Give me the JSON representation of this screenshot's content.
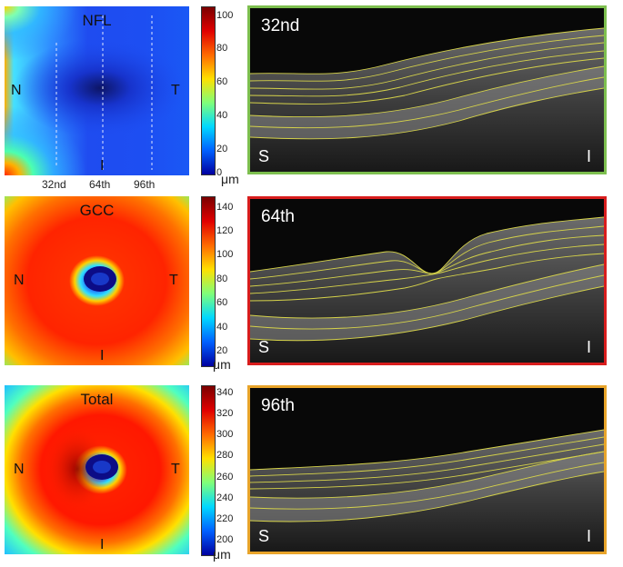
{
  "rows": [
    {
      "map_title": "NFL",
      "map_gradient": [
        "#ff2a00",
        "#ff9b00",
        "#2d9bff",
        "#2a52ff",
        "#1733d8",
        "#0e1470"
      ],
      "left_label": "N",
      "right_label": "T",
      "bottom_label": "I",
      "colorbar_ticks": [
        "100",
        "80",
        "60",
        "40",
        "20",
        "0"
      ],
      "unit": "μm",
      "scan_title": "32nd",
      "scan_border_color": "#7dbf4f",
      "scan_left": "S",
      "scan_right": "I"
    },
    {
      "map_title": "GCC",
      "left_label": "N",
      "right_label": "T",
      "bottom_label": "I",
      "colorbar_ticks": [
        "140",
        "120",
        "100",
        "80",
        "60",
        "40",
        "20"
      ],
      "unit": "μm",
      "scan_title": "64th",
      "scan_border_color": "#d81d1d",
      "scan_left": "S",
      "scan_right": "I"
    },
    {
      "map_title": "Total",
      "left_label": "N",
      "right_label": "T",
      "bottom_label": "I",
      "colorbar_ticks": [
        "340",
        "320",
        "300",
        "280",
        "260",
        "240",
        "220",
        "200"
      ],
      "unit": "μm",
      "scan_title": "96th",
      "scan_border_color": "#e8a42a",
      "scan_left": "S",
      "scan_right": "I"
    }
  ],
  "slice_labels": [
    "32nd",
    "64th",
    "96th"
  ],
  "colorbar_gradient": [
    "#7a0000",
    "#e00000",
    "#ff6a00",
    "#ffe000",
    "#7fff7a",
    "#00d8ff",
    "#0060ff",
    "#0000a0"
  ]
}
